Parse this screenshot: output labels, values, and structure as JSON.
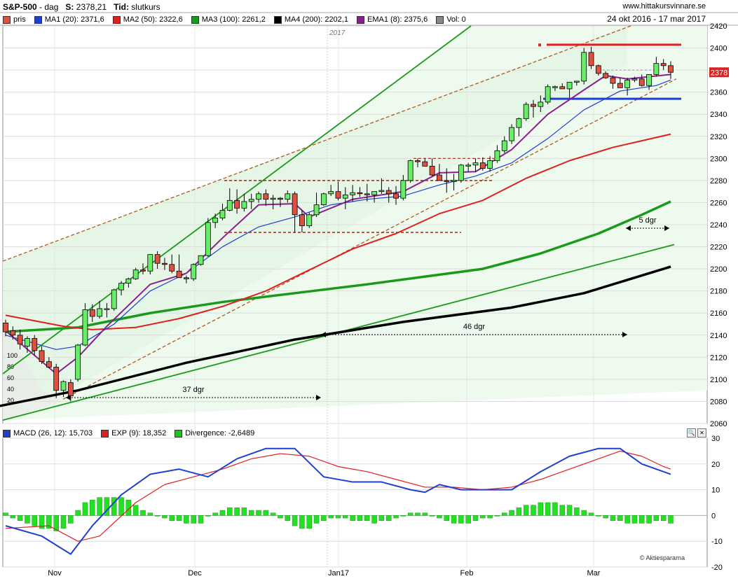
{
  "header": {
    "symbol": "S&P-500",
    "interval": "dag",
    "s_label": "S:",
    "s_value": "2378,21",
    "tid_label": "Tid:",
    "tid_value": "slutkurs",
    "site": "www.hittakursvinnare.se",
    "date_range": "24 okt 2016 - 17 mar 2017"
  },
  "legend_top": [
    {
      "label": "pris",
      "color": "#e05040"
    },
    {
      "label": "MA1 (20): 2371,6",
      "color": "#1f3fd0"
    },
    {
      "label": "MA2 (50): 2322,6",
      "color": "#e02020"
    },
    {
      "label": "MA3 (100): 2261,2",
      "color": "#1a9a1a"
    },
    {
      "label": "MA4 (200): 2202,1",
      "color": "#000000"
    },
    {
      "label": "EMA1 (8): 2375,6",
      "color": "#8a2090"
    },
    {
      "label": "Vol: 0",
      "color": "#888888"
    }
  ],
  "legend_bottom": [
    {
      "label": "MACD (26, 12): 15,703",
      "color": "#1f3fd0"
    },
    {
      "label": "EXP (9): 18,352",
      "color": "#e02020"
    },
    {
      "label": "Divergence: -2,6489",
      "color": "#22c022"
    }
  ],
  "price_badge": "2378",
  "year_label": "2017",
  "copyright": "© Aktiespararna",
  "annotations": {
    "span1": "37 dgr",
    "span2": "46 dgr",
    "span3": "5 dgr"
  },
  "month_labels": [
    "Nov",
    "Dec",
    "Jan17",
    "Feb",
    "Mar"
  ],
  "volume_scale": [
    "100",
    "80",
    "60",
    "40",
    "20"
  ],
  "colors": {
    "up": "#66ee66",
    "down": "#e05040",
    "ma20": "#1f3fd0",
    "ma50": "#e02020",
    "ma100": "#1a9a1a",
    "ma200": "#000000",
    "ema8": "#8a2090",
    "macd": "#1f3fd0",
    "signal": "#e02020",
    "hist": "#22e022"
  },
  "chart_data": [
    {
      "type": "candlestick",
      "title": "S&P-500",
      "ylim": [
        2060,
        2420
      ],
      "yticks": [
        2060,
        2080,
        2100,
        2120,
        2140,
        2160,
        2180,
        2200,
        2220,
        2240,
        2260,
        2280,
        2300,
        2320,
        2340,
        2360,
        2380,
        2400,
        2420
      ],
      "grid": true,
      "legend_position": "top",
      "candles": [
        [
          2151,
          2154,
          2139,
          2143
        ],
        [
          2144,
          2148,
          2136,
          2140
        ],
        [
          2140,
          2145,
          2127,
          2132
        ],
        [
          2130,
          2139,
          2124,
          2137
        ],
        [
          2137,
          2140,
          2122,
          2126
        ],
        [
          2126,
          2130,
          2114,
          2116
        ],
        [
          2116,
          2120,
          2110,
          2111
        ],
        [
          2111,
          2114,
          2083,
          2090
        ],
        [
          2090,
          2099,
          2084,
          2098
        ],
        [
          2097,
          2100,
          2080,
          2085
        ],
        [
          2100,
          2132,
          2098,
          2131
        ],
        [
          2131,
          2169,
          2130,
          2163
        ],
        [
          2163,
          2168,
          2152,
          2157
        ],
        [
          2157,
          2171,
          2155,
          2164
        ],
        [
          2164,
          2169,
          2156,
          2164
        ],
        [
          2164,
          2182,
          2162,
          2181
        ],
        [
          2181,
          2189,
          2176,
          2187
        ],
        [
          2187,
          2192,
          2183,
          2191
        ],
        [
          2191,
          2201,
          2190,
          2199
        ],
        [
          2199,
          2205,
          2195,
          2198
        ],
        [
          2198,
          2213,
          2195,
          2213
        ],
        [
          2213,
          2216,
          2200,
          2205
        ],
        [
          2205,
          2210,
          2199,
          2204
        ],
        [
          2204,
          2213,
          2196,
          2198
        ],
        [
          2198,
          2213,
          2193,
          2192
        ],
        [
          2192,
          2194,
          2187,
          2191
        ],
        [
          2191,
          2205,
          2189,
          2204
        ],
        [
          2204,
          2212,
          2203,
          2212
        ],
        [
          2212,
          2246,
          2211,
          2242
        ],
        [
          2242,
          2250,
          2237,
          2246
        ],
        [
          2246,
          2259,
          2244,
          2253
        ],
        [
          2253,
          2273,
          2252,
          2262
        ],
        [
          2262,
          2272,
          2250,
          2255
        ],
        [
          2255,
          2268,
          2252,
          2261
        ],
        [
          2261,
          2268,
          2254,
          2263
        ],
        [
          2263,
          2270,
          2260,
          2268
        ],
        [
          2268,
          2272,
          2257,
          2263
        ],
        [
          2263,
          2267,
          2254,
          2264
        ],
        [
          2264,
          2265,
          2256,
          2263
        ],
        [
          2263,
          2271,
          2260,
          2268
        ],
        [
          2268,
          2270,
          2233,
          2249
        ],
        [
          2249,
          2253,
          2233,
          2239
        ],
        [
          2239,
          2251,
          2237,
          2249
        ],
        [
          2249,
          2269,
          2247,
          2258
        ],
        [
          2258,
          2269,
          2257,
          2268
        ],
        [
          2268,
          2276,
          2266,
          2270
        ],
        [
          2270,
          2279,
          2262,
          2264
        ],
        [
          2264,
          2274,
          2254,
          2267
        ],
        [
          2267,
          2276,
          2261,
          2269
        ],
        [
          2269,
          2274,
          2265,
          2268
        ],
        [
          2268,
          2277,
          2261,
          2267
        ],
        [
          2267,
          2269,
          2260,
          2270
        ],
        [
          2270,
          2282,
          2268,
          2271
        ],
        [
          2271,
          2274,
          2260,
          2268
        ],
        [
          2268,
          2275,
          2258,
          2264
        ],
        [
          2264,
          2285,
          2262,
          2280
        ],
        [
          2280,
          2299,
          2278,
          2298
        ],
        [
          2298,
          2300,
          2292,
          2297
        ],
        [
          2297,
          2300,
          2293,
          2293
        ],
        [
          2293,
          2300,
          2284,
          2285
        ],
        [
          2285,
          2295,
          2280,
          2280
        ],
        [
          2280,
          2291,
          2269,
          2279
        ],
        [
          2279,
          2286,
          2271,
          2280
        ],
        [
          2280,
          2295,
          2278,
          2294
        ],
        [
          2294,
          2296,
          2288,
          2294
        ],
        [
          2294,
          2300,
          2288,
          2296
        ],
        [
          2296,
          2301,
          2289,
          2291
        ],
        [
          2291,
          2302,
          2288,
          2298
        ],
        [
          2298,
          2312,
          2296,
          2307
        ],
        [
          2307,
          2320,
          2305,
          2316
        ],
        [
          2316,
          2331,
          2313,
          2328
        ],
        [
          2328,
          2337,
          2320,
          2336
        ],
        [
          2336,
          2351,
          2334,
          2349
        ],
        [
          2349,
          2353,
          2337,
          2347
        ],
        [
          2347,
          2357,
          2342,
          2351
        ],
        [
          2351,
          2367,
          2349,
          2365
        ],
        [
          2365,
          2366,
          2361,
          2365
        ],
        [
          2365,
          2368,
          2364,
          2363
        ],
        [
          2363,
          2369,
          2355,
          2369
        ],
        [
          2369,
          2370,
          2366,
          2370
        ],
        [
          2370,
          2400,
          2367,
          2396
        ],
        [
          2396,
          2401,
          2381,
          2384
        ],
        [
          2384,
          2385,
          2375,
          2377
        ],
        [
          2377,
          2379,
          2372,
          2373
        ],
        [
          2373,
          2375,
          2363,
          2368
        ],
        [
          2368,
          2373,
          2364,
          2364
        ],
        [
          2364,
          2373,
          2357,
          2371
        ],
        [
          2371,
          2374,
          2369,
          2372
        ],
        [
          2372,
          2376,
          2365,
          2366
        ],
        [
          2366,
          2376,
          2362,
          2376
        ],
        [
          2376,
          2392,
          2374,
          2386
        ],
        [
          2386,
          2390,
          2380,
          2384
        ],
        [
          2384,
          2388,
          2372,
          2378
        ]
      ],
      "ma20_points": [
        [
          0,
          2140
        ],
        [
          7,
          2127
        ],
        [
          10,
          2130
        ],
        [
          15,
          2150
        ],
        [
          20,
          2180
        ],
        [
          25,
          2196
        ],
        [
          30,
          2220
        ],
        [
          35,
          2238
        ],
        [
          40,
          2247
        ],
        [
          45,
          2258
        ],
        [
          50,
          2263
        ],
        [
          55,
          2266
        ],
        [
          60,
          2276
        ],
        [
          65,
          2284
        ],
        [
          70,
          2296
        ],
        [
          75,
          2318
        ],
        [
          80,
          2344
        ],
        [
          85,
          2361
        ],
        [
          90,
          2366
        ],
        [
          92,
          2371
        ]
      ],
      "ma50_points": [
        [
          0,
          2158
        ],
        [
          8,
          2148
        ],
        [
          12,
          2145
        ],
        [
          18,
          2147
        ],
        [
          24,
          2155
        ],
        [
          30,
          2166
        ],
        [
          36,
          2180
        ],
        [
          42,
          2199
        ],
        [
          48,
          2218
        ],
        [
          54,
          2232
        ],
        [
          60,
          2250
        ],
        [
          66,
          2262
        ],
        [
          72,
          2282
        ],
        [
          78,
          2298
        ],
        [
          84,
          2310
        ],
        [
          88,
          2316
        ],
        [
          92,
          2322
        ]
      ],
      "ma100_points": [
        [
          0,
          2143
        ],
        [
          10,
          2147
        ],
        [
          20,
          2160
        ],
        [
          30,
          2170
        ],
        [
          40,
          2178
        ],
        [
          50,
          2186
        ],
        [
          58,
          2193
        ],
        [
          66,
          2200
        ],
        [
          74,
          2214
        ],
        [
          82,
          2232
        ],
        [
          88,
          2249
        ],
        [
          92,
          2261
        ]
      ],
      "ma200_points": [
        [
          -3,
          2073
        ],
        [
          10,
          2090
        ],
        [
          25,
          2115
        ],
        [
          40,
          2136
        ],
        [
          55,
          2152
        ],
        [
          70,
          2165
        ],
        [
          80,
          2178
        ],
        [
          88,
          2194
        ],
        [
          92,
          2202
        ]
      ],
      "ema8_points": [
        [
          0,
          2144
        ],
        [
          7,
          2105
        ],
        [
          10,
          2120
        ],
        [
          14,
          2148
        ],
        [
          20,
          2186
        ],
        [
          25,
          2196
        ],
        [
          30,
          2228
        ],
        [
          35,
          2258
        ],
        [
          40,
          2259
        ],
        [
          42,
          2247
        ],
        [
          48,
          2263
        ],
        [
          55,
          2270
        ],
        [
          60,
          2287
        ],
        [
          65,
          2288
        ],
        [
          70,
          2308
        ],
        [
          75,
          2340
        ],
        [
          80,
          2362
        ],
        [
          83,
          2375
        ],
        [
          86,
          2372
        ],
        [
          92,
          2376
        ]
      ]
    },
    {
      "type": "bar",
      "title": "MACD",
      "ylim": [
        -20,
        30
      ],
      "yticks": [
        -20,
        -10,
        0,
        10,
        20,
        30
      ],
      "macd_points": [
        [
          0,
          -4
        ],
        [
          5,
          -8
        ],
        [
          9,
          -15
        ],
        [
          12,
          -4
        ],
        [
          16,
          8
        ],
        [
          20,
          16
        ],
        [
          24,
          18
        ],
        [
          28,
          15
        ],
        [
          32,
          22
        ],
        [
          36,
          26
        ],
        [
          40,
          26
        ],
        [
          44,
          15
        ],
        [
          48,
          13
        ],
        [
          52,
          13
        ],
        [
          56,
          10
        ],
        [
          58,
          9
        ],
        [
          60,
          12
        ],
        [
          63,
          10
        ],
        [
          66,
          10
        ],
        [
          70,
          10
        ],
        [
          74,
          17
        ],
        [
          78,
          23
        ],
        [
          82,
          26
        ],
        [
          85,
          26
        ],
        [
          88,
          20
        ],
        [
          91,
          17
        ],
        [
          92,
          16
        ]
      ],
      "signal_points": [
        [
          0,
          -5
        ],
        [
          6,
          -4
        ],
        [
          10,
          -10
        ],
        [
          13,
          -8
        ],
        [
          18,
          5
        ],
        [
          22,
          12
        ],
        [
          26,
          15
        ],
        [
          30,
          18
        ],
        [
          34,
          22
        ],
        [
          38,
          24
        ],
        [
          42,
          23
        ],
        [
          46,
          19
        ],
        [
          50,
          17
        ],
        [
          54,
          14
        ],
        [
          58,
          11
        ],
        [
          62,
          11
        ],
        [
          66,
          10
        ],
        [
          70,
          11
        ],
        [
          74,
          14
        ],
        [
          78,
          18
        ],
        [
          82,
          22
        ],
        [
          85,
          25
        ],
        [
          88,
          23
        ],
        [
          91,
          19
        ],
        [
          92,
          18
        ]
      ],
      "histogram": [
        1,
        -1,
        -2,
        -3,
        -4,
        -5,
        -5,
        -6,
        -5,
        -3,
        2,
        5,
        6,
        7,
        7,
        7,
        7,
        6,
        4,
        2,
        1,
        0,
        -1,
        -2,
        -2,
        -3,
        -3,
        -3,
        0,
        1,
        2,
        3,
        3,
        3,
        2,
        2,
        2,
        1,
        -1,
        -2,
        -4,
        -5,
        -5,
        -3,
        -2,
        -1,
        -1,
        -1,
        -2,
        -2,
        -2,
        -3,
        -2,
        -2,
        -1,
        0,
        1,
        1,
        1,
        0,
        -1,
        -2,
        -3,
        -3,
        -3,
        -2,
        -1,
        -1,
        0,
        1,
        2,
        3,
        4,
        4,
        5,
        5,
        5,
        4,
        4,
        3,
        2,
        1,
        0,
        -1,
        -2,
        -2,
        -3,
        -3,
        -3,
        -3,
        -2,
        -2,
        -3
      ]
    }
  ]
}
